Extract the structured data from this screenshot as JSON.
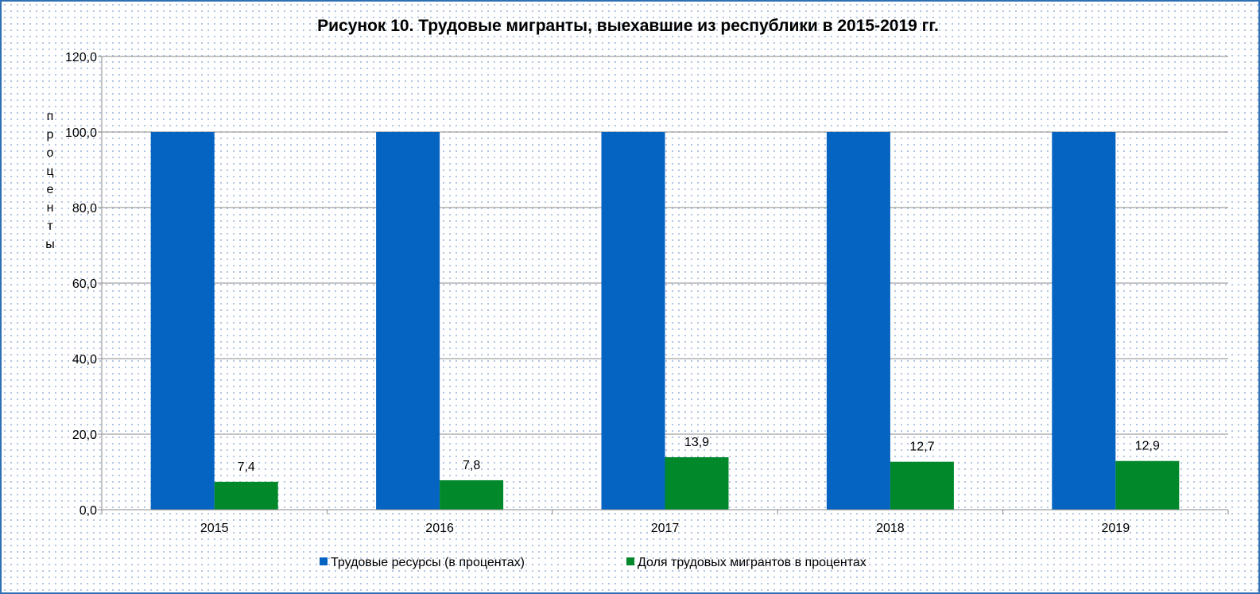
{
  "chart_data": {
    "type": "bar",
    "title": "Рисунок 10. Трудовые мигранты, выехавшие из республики в 2015-2019 гг.",
    "ylabel": "проценты",
    "xlabel": "",
    "categories": [
      "2015",
      "2016",
      "2017",
      "2018",
      "2019"
    ],
    "ylim": [
      0,
      120
    ],
    "yticks": [
      "0,0",
      "20,0",
      "40,0",
      "60,0",
      "80,0",
      "100,0",
      "120,0"
    ],
    "ytick_values": [
      0,
      20,
      40,
      60,
      80,
      100,
      120
    ],
    "grid": true,
    "legend_position": "bottom",
    "series": [
      {
        "name": "Трудовые ресурсы (в процентах)",
        "color": "#0563c1",
        "values": [
          100,
          100,
          100,
          100,
          100
        ],
        "labels": [
          "",
          "",
          "",
          "",
          ""
        ]
      },
      {
        "name": "Доля трудовых мигрантов в процентах",
        "color": "#00882b",
        "values": [
          7.4,
          7.8,
          13.9,
          12.7,
          12.9
        ],
        "labels": [
          "7,4",
          "7,8",
          "13,9",
          "12,7",
          "12,9"
        ]
      }
    ]
  }
}
